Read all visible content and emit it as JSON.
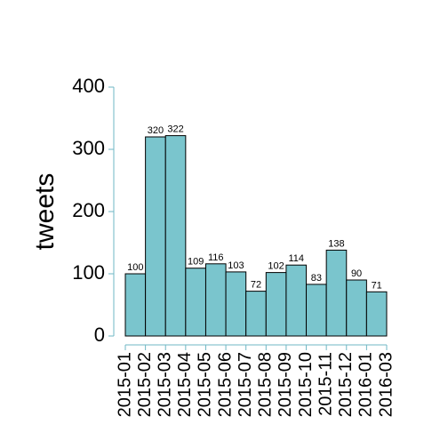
{
  "chart_data": {
    "type": "histogram",
    "y_label": "tweets",
    "bins": [
      "2015-01",
      "2015-02",
      "2015-03",
      "2015-04",
      "2015-05",
      "2015-06",
      "2015-07",
      "2015-08",
      "2015-09",
      "2015-10",
      "2015-11",
      "2015-12",
      "2016-01",
      "2016-03"
    ],
    "values": [
      100,
      320,
      322,
      109,
      116,
      103,
      72,
      102,
      114,
      83,
      138,
      90,
      71
    ],
    "color": "#7ac5cd",
    "axis_color": "#6fb7c4",
    "ylim": [
      0,
      400
    ],
    "yticks": [
      0,
      100,
      200,
      300,
      400
    ]
  }
}
